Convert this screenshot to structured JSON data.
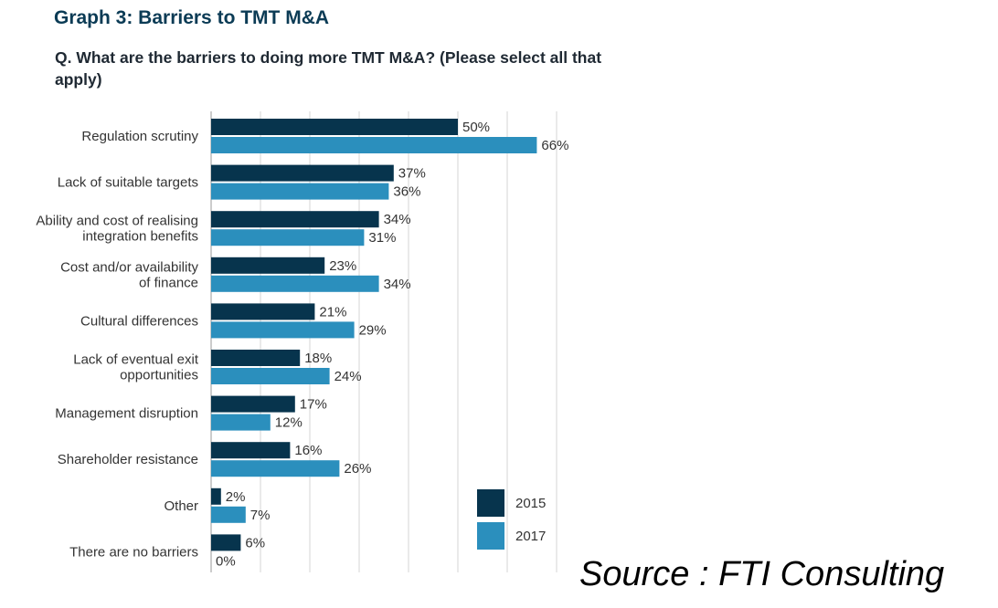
{
  "title": "Graph 3: Barriers to TMT M&A",
  "question": "Q. What are the barriers to doing more TMT M&A? (Please select all that apply)",
  "source": "Source : FTI Consulting",
  "colors": {
    "2015": "#07344d",
    "2017": "#2b8fbd",
    "grid": "#d4d4d4"
  },
  "chart_data": {
    "type": "bar",
    "orientation": "horizontal",
    "categories": [
      [
        "Regulation scrutiny"
      ],
      [
        "Lack of suitable targets"
      ],
      [
        "Ability and cost of realising",
        "integration benefits"
      ],
      [
        "Cost and/or availability",
        "of finance"
      ],
      [
        "Cultural differences"
      ],
      [
        "Lack of eventual exit",
        "opportunities"
      ],
      [
        "Management disruption"
      ],
      [
        "Shareholder resistance"
      ],
      [
        "Other"
      ],
      [
        "There are no barriers"
      ]
    ],
    "series": [
      {
        "name": "2015",
        "values": [
          50,
          37,
          34,
          23,
          21,
          18,
          17,
          16,
          2,
          6
        ]
      },
      {
        "name": "2017",
        "values": [
          66,
          36,
          31,
          34,
          29,
          24,
          12,
          26,
          7,
          0
        ]
      }
    ],
    "value_suffix": "%",
    "xlim": [
      0,
      70
    ],
    "grid": true,
    "legend_position": "bottom-right"
  }
}
